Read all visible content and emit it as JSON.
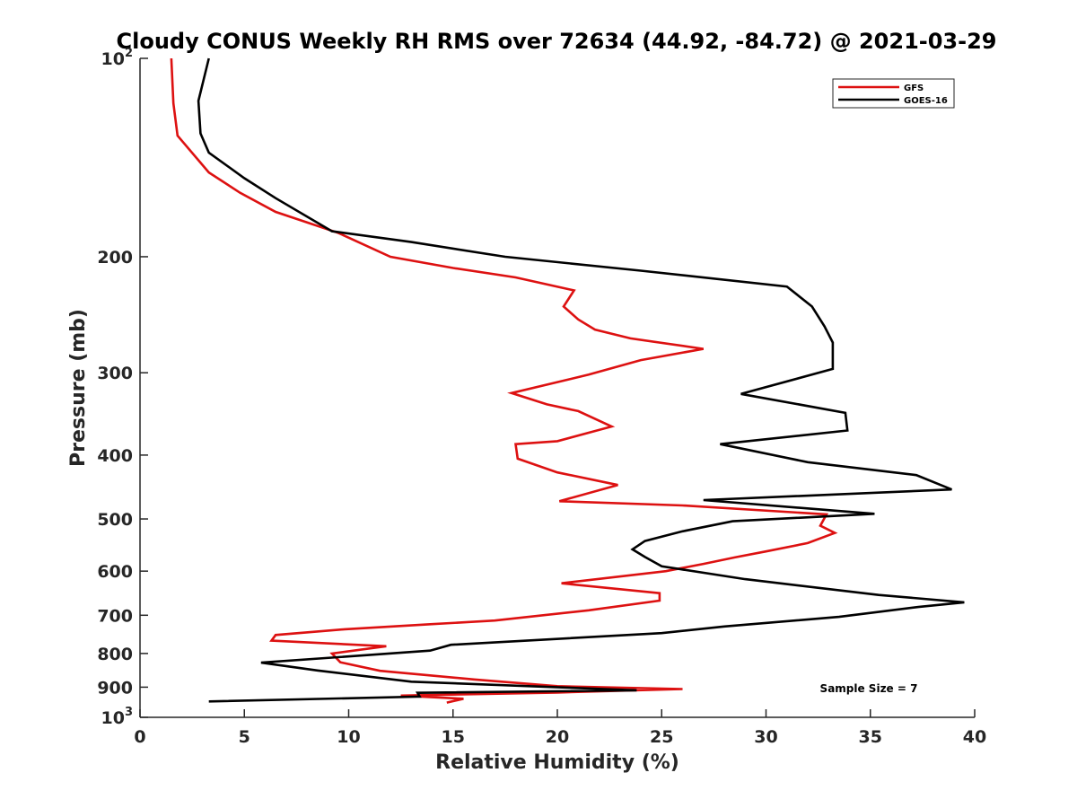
{
  "chart_data": {
    "type": "line",
    "title": "Cloudy CONUS Weekly RH RMS over 72634 (44.92, -84.72) @ 2021-03-29",
    "xlabel": "Relative Humidity (%)",
    "ylabel": "Pressure (mb)",
    "xlim": [
      0,
      40
    ],
    "ylim": [
      100,
      1000
    ],
    "y_scale": "log",
    "y_reversed": true,
    "x_ticks": [
      "0",
      "5",
      "10",
      "15",
      "20",
      "25",
      "30",
      "35",
      "40"
    ],
    "y_ticks": [
      {
        "value": 100,
        "base": "10",
        "sup": "2"
      },
      {
        "value": 200,
        "base": "200",
        "sup": ""
      },
      {
        "value": 300,
        "base": "300",
        "sup": ""
      },
      {
        "value": 400,
        "base": "400",
        "sup": ""
      },
      {
        "value": 500,
        "base": "500",
        "sup": ""
      },
      {
        "value": 600,
        "base": "600",
        "sup": ""
      },
      {
        "value": 700,
        "base": "700",
        "sup": ""
      },
      {
        "value": 800,
        "base": "800",
        "sup": ""
      },
      {
        "value": 900,
        "base": "900",
        "sup": ""
      },
      {
        "value": 1000,
        "base": "10",
        "sup": "3"
      }
    ],
    "grid": false,
    "legend_position": "top-right",
    "annotation": "Sample Size = 7",
    "series": [
      {
        "name": "GFS",
        "color": "#dd1111",
        "points": [
          [
            1.5,
            100
          ],
          [
            1.6,
            117
          ],
          [
            1.8,
            131
          ],
          [
            3.3,
            149
          ],
          [
            4.8,
            160
          ],
          [
            6.5,
            171
          ],
          [
            9.5,
            184
          ],
          [
            12,
            200
          ],
          [
            15,
            208
          ],
          [
            18,
            215
          ],
          [
            20.8,
            225
          ],
          [
            20.3,
            238
          ],
          [
            21,
            249
          ],
          [
            21.8,
            258
          ],
          [
            23.5,
            266
          ],
          [
            27,
            276
          ],
          [
            24,
            287
          ],
          [
            21.5,
            302
          ],
          [
            17.8,
            322
          ],
          [
            19.5,
            335
          ],
          [
            21,
            343
          ],
          [
            22.6,
            362
          ],
          [
            20,
            381
          ],
          [
            18,
            385
          ],
          [
            18.1,
            405
          ],
          [
            20,
            425
          ],
          [
            22.9,
            444
          ],
          [
            20.1,
            470
          ],
          [
            26,
            477
          ],
          [
            32.9,
            492
          ],
          [
            32.6,
            512
          ],
          [
            33.3,
            525
          ],
          [
            32,
            544
          ],
          [
            30,
            560
          ],
          [
            28.5,
            572
          ],
          [
            27,
            585
          ],
          [
            25.2,
            600
          ],
          [
            20.2,
            626
          ],
          [
            24.9,
            648
          ],
          [
            24.9,
            665
          ],
          [
            21.5,
            688
          ],
          [
            17,
            713
          ],
          [
            14,
            722
          ],
          [
            9.8,
            735
          ],
          [
            6.5,
            750
          ],
          [
            6.3,
            765
          ],
          [
            11.8,
            780
          ],
          [
            9.2,
            800
          ],
          [
            9.6,
            825
          ],
          [
            11.5,
            850
          ],
          [
            16,
            876
          ],
          [
            20,
            897
          ],
          [
            26,
            906
          ],
          [
            20,
            917
          ],
          [
            12.5,
            927
          ],
          [
            15.5,
            937
          ],
          [
            14.7,
            950
          ]
        ]
      },
      {
        "name": "GOES-16",
        "color": "#000000",
        "points": [
          [
            3.3,
            100
          ],
          [
            2.8,
            116
          ],
          [
            2.9,
            130
          ],
          [
            3.3,
            139
          ],
          [
            5,
            152
          ],
          [
            6.5,
            163
          ],
          [
            9.2,
            183
          ],
          [
            13,
            190
          ],
          [
            17.5,
            200
          ],
          [
            24,
            210
          ],
          [
            31,
            222
          ],
          [
            32.2,
            238
          ],
          [
            32.8,
            255
          ],
          [
            33.2,
            270
          ],
          [
            33.2,
            296
          ],
          [
            28.8,
            323
          ],
          [
            33.8,
            345
          ],
          [
            33.9,
            367
          ],
          [
            27.8,
            385
          ],
          [
            32,
            410
          ],
          [
            37.2,
            429
          ],
          [
            38.9,
            451
          ],
          [
            27,
            468
          ],
          [
            35.2,
            491
          ],
          [
            28.4,
            504
          ],
          [
            26,
            522
          ],
          [
            24.2,
            540
          ],
          [
            23.6,
            556
          ],
          [
            24.2,
            571
          ],
          [
            25,
            590
          ],
          [
            29,
            617
          ],
          [
            35.4,
            652
          ],
          [
            39.5,
            669
          ],
          [
            37.3,
            680
          ],
          [
            33.5,
            704
          ],
          [
            28,
            728
          ],
          [
            25,
            745
          ],
          [
            14.9,
            776
          ],
          [
            13.9,
            792
          ],
          [
            5.8,
            826
          ],
          [
            8.5,
            849
          ],
          [
            13,
            883
          ],
          [
            23.8,
            910
          ],
          [
            13.3,
            918
          ],
          [
            13.4,
            930
          ],
          [
            3.3,
            946
          ]
        ]
      }
    ]
  }
}
